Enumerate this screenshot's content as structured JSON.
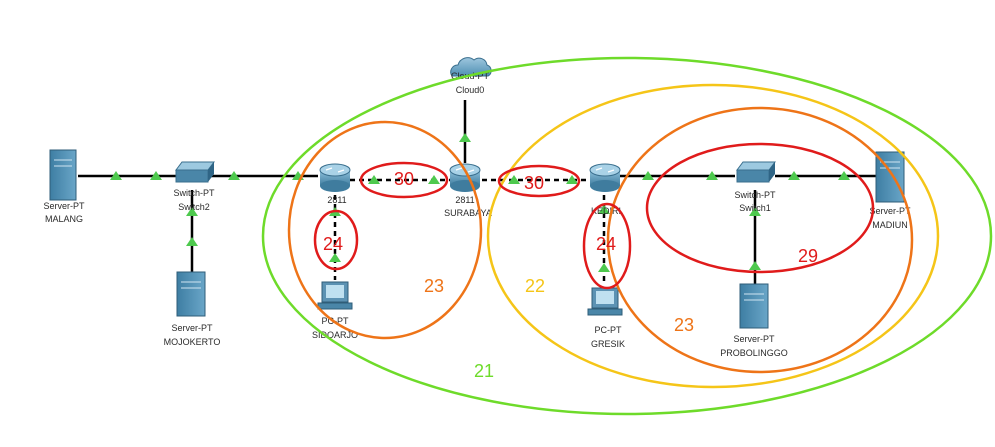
{
  "colors": {
    "link": "#000000",
    "link_arrow": "#4ec94e",
    "ring_red": "#e01b1b",
    "ring_orange": "#ee7418",
    "ring_yellow": "#f5c518",
    "ring_green": "#6edb2a",
    "device_blue": "#4a86a8"
  },
  "devices": {
    "cloud": {
      "type": "Cloud-PT",
      "name": "Cloud0"
    },
    "server_malang": {
      "type": "Server-PT",
      "name": "MALANG"
    },
    "switch2": {
      "type": "Switch-PT",
      "name": "Switch2"
    },
    "server_mojokerto": {
      "type": "Server-PT",
      "name": "MOJOKERTO"
    },
    "router_left": {
      "type": "2811",
      "name": ""
    },
    "pc_sidoarjo": {
      "type": "PC-PT",
      "name": "SIDOARJO"
    },
    "router_surabaya": {
      "type": "2811",
      "name": "SURABAYA"
    },
    "router_kediri": {
      "type": "",
      "name": "KEDIRI"
    },
    "pc_gresik": {
      "type": "PC-PT",
      "name": "GRESIK"
    },
    "switch1": {
      "type": "Switch-PT",
      "name": "Switch1"
    },
    "server_madiun": {
      "type": "Server-PT",
      "name": "MADIUN"
    },
    "server_probolinggo": {
      "type": "Server-PT",
      "name": "PROBOLINGGO"
    }
  },
  "subnet_labels": {
    "link_left_router_surabaya": "30",
    "link_surabaya_kediri": "30",
    "link_left_router_pc": "24",
    "link_kediri_pc": "24",
    "lan_switch1": "29",
    "orange_left": "23",
    "orange_right": "23",
    "yellow": "22",
    "green": "21"
  }
}
